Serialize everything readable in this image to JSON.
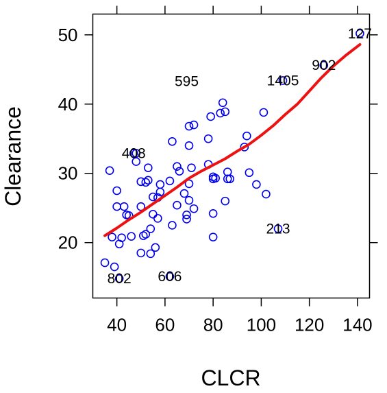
{
  "chart_data": {
    "type": "scatter",
    "title": "",
    "xlabel": "CLCR",
    "ylabel": "Clearance",
    "xlim": [
      30,
      145
    ],
    "ylim": [
      12,
      53
    ],
    "xticks": [
      40,
      60,
      80,
      100,
      120,
      140
    ],
    "yticks": [
      20,
      30,
      40,
      50
    ],
    "x_tick_labels": [
      "40",
      "60",
      "80",
      "100",
      "120",
      "140"
    ],
    "y_tick_labels": [
      "20",
      "30",
      "40",
      "50"
    ],
    "grid": false,
    "legend": "none",
    "colors": {
      "points": "#0000ee",
      "trend": "#ee1111"
    },
    "series": [
      {
        "type": "scatter",
        "x": [
          35,
          37,
          38,
          39,
          40,
          40,
          41,
          41,
          42,
          43,
          44,
          45,
          46,
          47,
          48,
          48,
          50,
          50,
          50,
          51,
          52,
          52,
          53,
          53,
          54,
          54,
          55,
          55,
          56,
          57,
          57,
          58,
          58,
          62,
          62,
          63,
          63,
          65,
          65,
          66,
          68,
          69,
          69,
          70,
          70,
          70,
          70,
          71,
          72,
          72,
          78,
          78,
          79,
          80,
          80,
          80,
          80,
          81,
          83,
          84,
          85,
          85,
          86,
          86,
          87,
          93,
          94,
          95,
          98,
          101,
          102,
          107,
          109,
          126,
          141
        ],
        "y": [
          17.1,
          30.4,
          20.8,
          16.5,
          27.5,
          25.2,
          14.8,
          19.8,
          20.7,
          25.2,
          24.0,
          23.9,
          20.9,
          32.9,
          31.7,
          32.9,
          28.8,
          25.2,
          18.5,
          21.0,
          21.2,
          28.7,
          29.0,
          30.8,
          22.0,
          18.4,
          26.6,
          24.1,
          19.3,
          23.5,
          26.5,
          27.3,
          28.4,
          15.1,
          28.9,
          34.6,
          22.5,
          31.0,
          25.4,
          30.3,
          27.1,
          23.4,
          24.0,
          34.0,
          28.5,
          26.1,
          36.8,
          30.8,
          37.0,
          24.9,
          35.0,
          31.3,
          38.2,
          29.2,
          29.5,
          20.8,
          24.2,
          29.3,
          38.7,
          40.2,
          26.0,
          38.9,
          30.2,
          29.2,
          29.2,
          33.8,
          35.4,
          30.1,
          28.4,
          38.8,
          27.0,
          22.0,
          43.4,
          45.6,
          50.2
        ]
      },
      {
        "type": "line",
        "x": [
          35,
          40,
          45,
          50,
          55,
          60,
          65,
          70,
          75,
          80,
          85,
          90,
          95,
          100,
          105,
          110,
          115,
          120,
          125,
          130,
          135,
          141
        ],
        "y": [
          21.0,
          22.1,
          23.3,
          24.4,
          25.6,
          26.8,
          28.0,
          29.3,
          30.3,
          31.2,
          32.1,
          33.2,
          34.2,
          35.5,
          36.9,
          38.5,
          40.0,
          41.9,
          43.8,
          45.5,
          47.0,
          48.6
        ]
      }
    ],
    "annotations": [
      {
        "label": "127",
        "x": 141,
        "y": 50.2
      },
      {
        "label": "902",
        "x": 126,
        "y": 45.6
      },
      {
        "label": "1405",
        "x": 109,
        "y": 43.4
      },
      {
        "label": "595",
        "x": 69,
        "y": 43.3
      },
      {
        "label": "408",
        "x": 47,
        "y": 32.9
      },
      {
        "label": "213",
        "x": 107,
        "y": 22.0
      },
      {
        "label": "606",
        "x": 62,
        "y": 15.1
      },
      {
        "label": "802",
        "x": 41,
        "y": 14.8
      }
    ]
  }
}
